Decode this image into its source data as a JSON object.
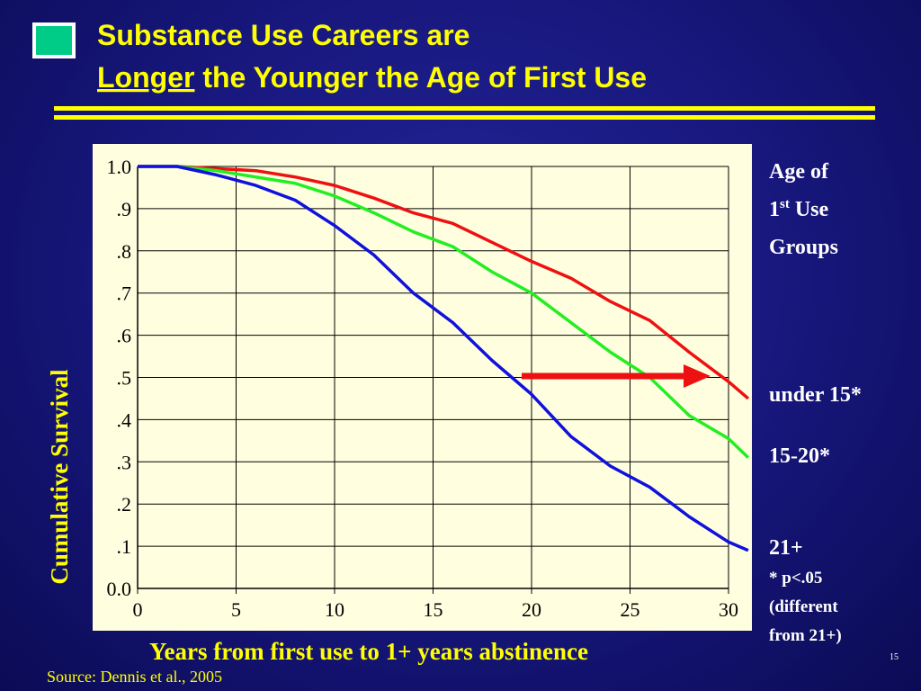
{
  "chart_data": {
    "type": "line",
    "title": [
      "Substance Use Careers are",
      "Longer",
      " the Younger the Age of First Use"
    ],
    "legend_title": [
      "Age of",
      "1",
      "st",
      " Use",
      "Groups"
    ],
    "xlabel": "Years from first use to 1+ years abstinence",
    "ylabel": "Cumulative Survival",
    "notes": [
      "* p<.05",
      "(different",
      "from 21+)"
    ],
    "source": "Source: Dennis et al., 2005",
    "page_number": "15",
    "x": [
      0,
      2,
      4,
      6,
      8,
      10,
      12,
      14,
      16,
      18,
      20,
      22,
      24,
      26,
      28,
      30,
      31
    ],
    "series": [
      {
        "name": "under 15*",
        "color": "#ee1111",
        "values": [
          1.0,
          1.0,
          0.995,
          0.99,
          0.975,
          0.955,
          0.925,
          0.89,
          0.865,
          0.82,
          0.775,
          0.735,
          0.68,
          0.635,
          0.56,
          0.49,
          0.45
        ]
      },
      {
        "name": "15-20*",
        "color": "#22ee22",
        "values": [
          1.0,
          1.0,
          0.99,
          0.975,
          0.96,
          0.93,
          0.89,
          0.845,
          0.81,
          0.75,
          0.7,
          0.63,
          0.56,
          0.5,
          0.41,
          0.355,
          0.31
        ]
      },
      {
        "name": "21+",
        "color": "#1111dd",
        "values": [
          1.0,
          1.0,
          0.98,
          0.955,
          0.92,
          0.86,
          0.79,
          0.7,
          0.63,
          0.54,
          0.46,
          0.36,
          0.29,
          0.24,
          0.17,
          0.11,
          0.09
        ]
      }
    ],
    "xlim": [
      0,
      31
    ],
    "xticks": [
      0,
      5,
      10,
      15,
      20,
      25,
      30
    ],
    "ylim": [
      0,
      1
    ],
    "yticks": [
      {
        "value": 0,
        "label": "0.0"
      },
      {
        "value": 0.1,
        "label": ".1"
      },
      {
        "value": 0.2,
        "label": ".2"
      },
      {
        "value": 0.3,
        "label": ".3"
      },
      {
        "value": 0.4,
        "label": ".4"
      },
      {
        "value": 0.5,
        "label": ".5"
      },
      {
        "value": 0.6,
        "label": ".6"
      },
      {
        "value": 0.7,
        "label": ".7"
      },
      {
        "value": 0.8,
        "label": ".8"
      },
      {
        "value": 0.9,
        "label": ".9"
      },
      {
        "value": 1,
        "label": "1.0"
      }
    ],
    "grid": true
  }
}
